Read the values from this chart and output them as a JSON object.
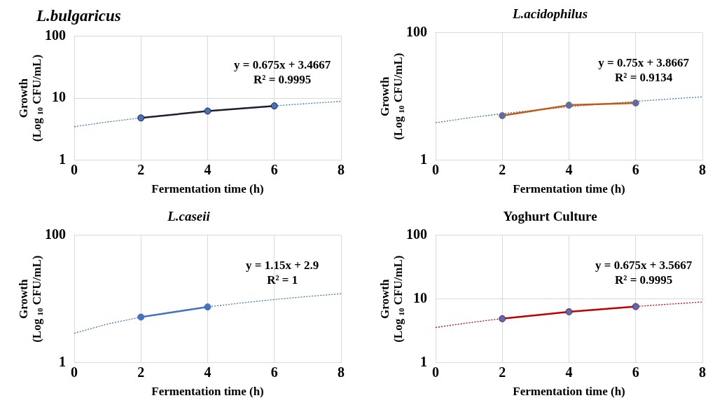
{
  "chart_data": [
    {
      "type": "line",
      "title": "L.bulgaricus",
      "xlabel": "Fermentation time (h)",
      "ylabel": "Growth\n(Log $_{10}$ CFU/mL)",
      "log": "y",
      "xlim": [
        0,
        8
      ],
      "xticks": [
        0,
        2,
        4,
        6,
        8
      ],
      "ylim": [
        1,
        100
      ],
      "yticks": [
        1,
        10,
        100
      ],
      "grid": true,
      "annotations": [
        "y = 0.675x + 3.4667",
        "R² = 0.9995"
      ],
      "series": [
        {
          "color": "#1f1f2e",
          "x": [
            2,
            4,
            6
          ],
          "values": [
            4.8,
            6.2,
            7.5
          ],
          "marker": "circle",
          "line_style": "solid"
        },
        {
          "color": "#4472c4",
          "x": [
            0,
            1,
            2,
            3,
            4,
            5,
            6,
            7,
            8
          ],
          "values": [
            3.47,
            4.14,
            4.82,
            5.49,
            6.17,
            6.84,
            7.52,
            8.19,
            8.87
          ],
          "marker": "none",
          "line_style": "dotted"
        }
      ]
    },
    {
      "type": "line",
      "title": "L.acidophilus",
      "xlabel": "Fermentation time (h)",
      "ylabel": "Growth\n(Log $_{10}$ CFU/mL)",
      "log": "y",
      "xlim": [
        0,
        8
      ],
      "xticks": [
        0,
        2,
        4,
        6,
        8
      ],
      "ylim": [
        1,
        100
      ],
      "yticks": [
        1,
        100
      ],
      "grid": true,
      "annotations": [
        "y = 0.75x + 3.8667",
        "R² = 0.9134"
      ],
      "series": [
        {
          "color": "#c55a11",
          "x": [
            2,
            4,
            6
          ],
          "values": [
            5.0,
            7.3,
            7.9
          ],
          "marker": "circle",
          "line_style": "solid"
        },
        {
          "color": "#4472c4",
          "x": [
            0,
            1,
            2,
            3,
            4,
            5,
            6,
            7,
            8
          ],
          "values": [
            3.87,
            4.62,
            5.37,
            6.12,
            6.87,
            7.62,
            8.37,
            9.12,
            9.87
          ],
          "marker": "none",
          "line_style": "dotted"
        }
      ]
    },
    {
      "type": "line",
      "title": "L.caseii",
      "xlabel": "Fermentation time (h)",
      "ylabel": "Growth\n(Log $_{10}$ CFU/mL)",
      "log": "y",
      "xlim": [
        0,
        8
      ],
      "xticks": [
        0,
        2,
        4,
        6,
        8
      ],
      "ylim": [
        1,
        100
      ],
      "yticks": [
        1,
        100
      ],
      "grid": true,
      "annotations": [
        "y = 1.15x + 2.9",
        "R² = 1"
      ],
      "series": [
        {
          "color": "#4472c4",
          "x": [
            2,
            4
          ],
          "values": [
            5.2,
            7.5
          ],
          "marker": "circle",
          "line_style": "solid"
        },
        {
          "color": "#4472c4",
          "x": [
            0,
            1,
            2,
            3,
            4,
            5,
            6,
            7,
            8
          ],
          "values": [
            2.9,
            4.05,
            5.2,
            6.35,
            7.5,
            8.65,
            9.8,
            10.95,
            12.1
          ],
          "marker": "none",
          "line_style": "dotted"
        }
      ]
    },
    {
      "type": "line",
      "title": "Yoghurt Culture",
      "xlabel": "Fermentation time (h)",
      "ylabel": "Growth\n(Log $_{10}$ CFU/mL)",
      "log": "y",
      "xlim": [
        0,
        8
      ],
      "xticks": [
        0,
        2,
        4,
        6,
        8
      ],
      "ylim": [
        1,
        100
      ],
      "yticks": [
        1,
        10,
        100
      ],
      "grid": true,
      "annotations": [
        "y = 0.675x + 3.5667",
        "R² = 0.9995"
      ],
      "series": [
        {
          "color": "#c00000",
          "x": [
            2,
            4,
            6
          ],
          "values": [
            4.9,
            6.3,
            7.6
          ],
          "marker": "circle",
          "line_style": "solid"
        },
        {
          "color": "#c00000",
          "x": [
            0,
            1,
            2,
            3,
            4,
            5,
            6,
            7,
            8
          ],
          "values": [
            3.57,
            4.24,
            4.92,
            5.59,
            6.27,
            6.94,
            7.62,
            8.29,
            8.97
          ],
          "marker": "none",
          "line_style": "dotted"
        }
      ]
    }
  ]
}
